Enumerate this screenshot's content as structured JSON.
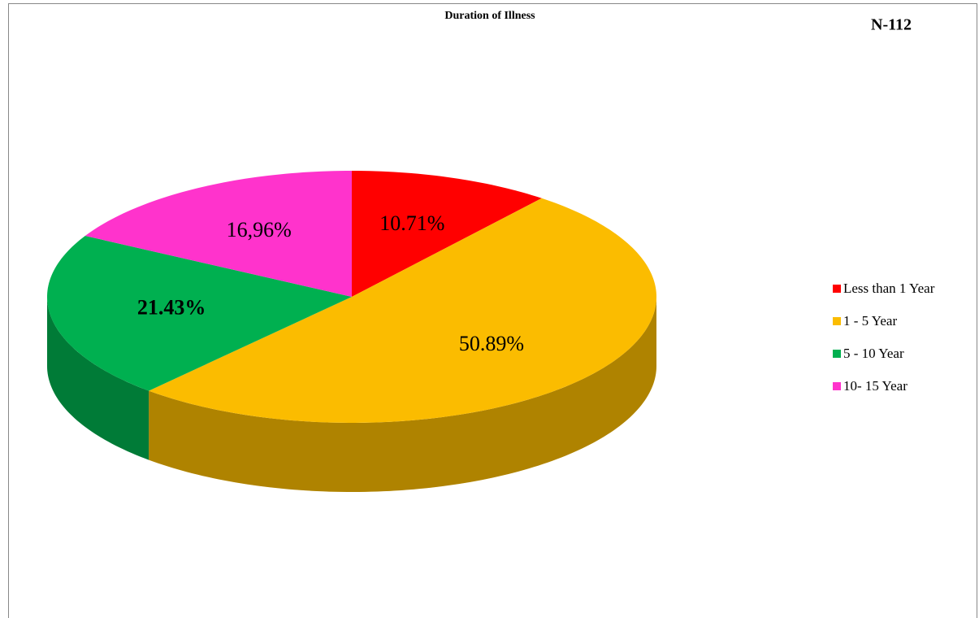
{
  "chart_data": {
    "type": "pie",
    "title": "Duration of Illness",
    "annotation": "N-112",
    "categories": [
      "Less than 1 Year",
      "1 - 5 Year",
      "5 - 10 Year",
      "10- 15 Year"
    ],
    "values": [
      10.71,
      50.89,
      21.43,
      16.96
    ],
    "value_labels": [
      "10.71%",
      "50.89%",
      "21.43%",
      "16,96%"
    ],
    "colors": [
      "#ff0000",
      "#fbbc00",
      "#00b050",
      "#ff33cc"
    ],
    "legend": "right"
  }
}
